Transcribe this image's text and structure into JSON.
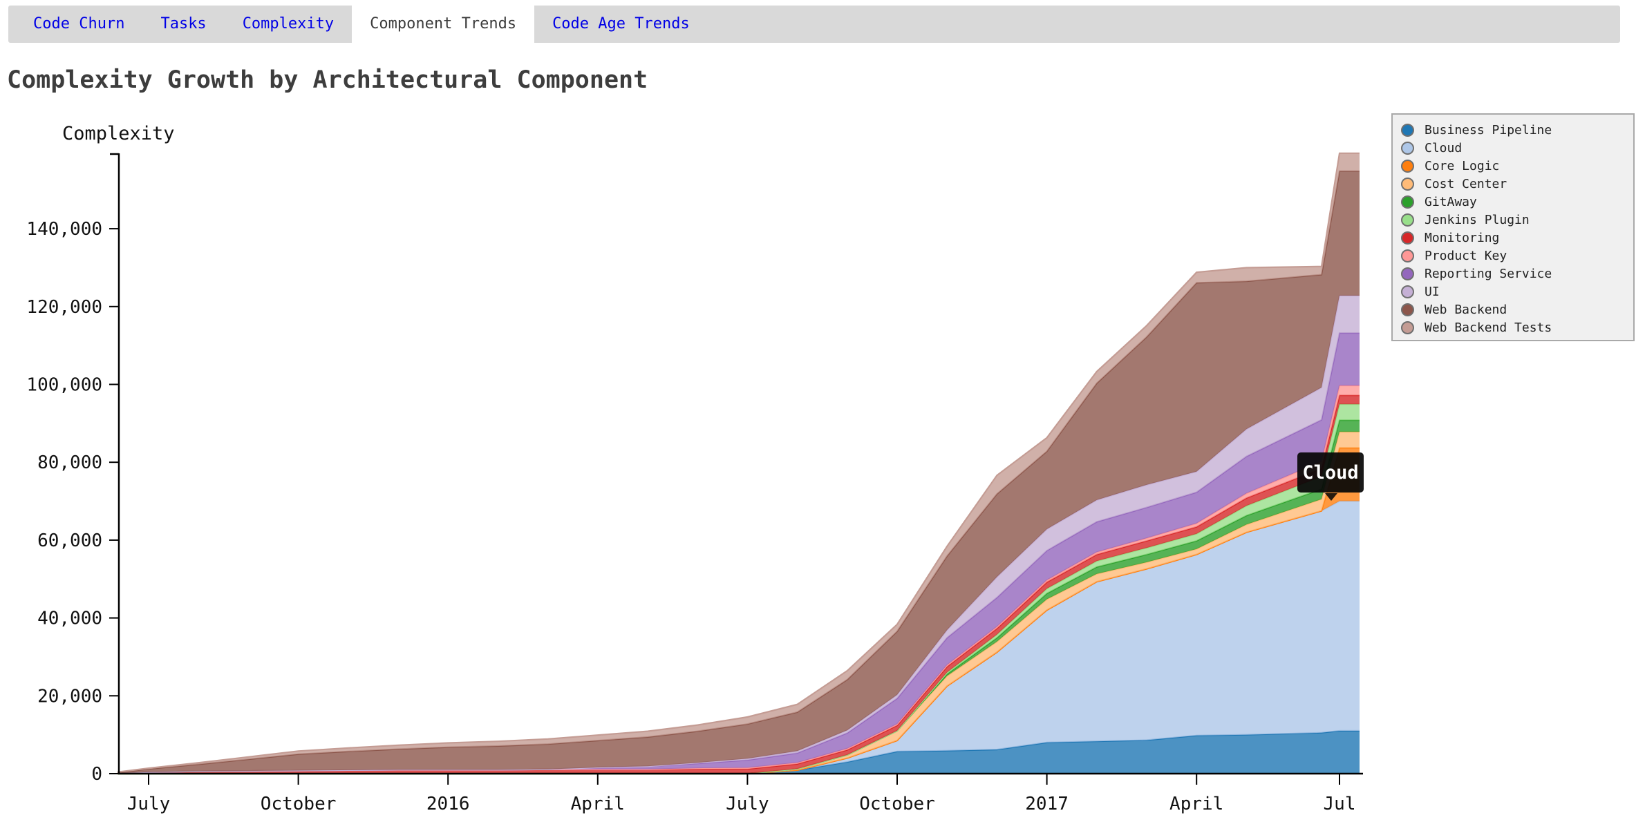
{
  "tabs": {
    "items": [
      {
        "label": "Code Churn",
        "active": false
      },
      {
        "label": "Tasks",
        "active": false
      },
      {
        "label": "Complexity",
        "active": false
      },
      {
        "label": "Component Trends",
        "active": true
      },
      {
        "label": "Code Age Trends",
        "active": false
      }
    ]
  },
  "title": "Complexity Growth by Architectural Component",
  "y_axis": {
    "title": "Complexity",
    "tick_values": [
      0,
      20000,
      40000,
      60000,
      80000,
      100000,
      120000,
      140000
    ],
    "tick_labels": [
      "0",
      "20,000",
      "40,000",
      "60,000",
      "80,000",
      "100,000",
      "120,000",
      "140,000"
    ]
  },
  "x_axis": {
    "tick_labels": [
      "July",
      "October",
      "2016",
      "April",
      "July",
      "October",
      "2017",
      "April",
      "Jul"
    ],
    "tick_month_indices": [
      1,
      4,
      7,
      10,
      13,
      16,
      19,
      22,
      25
    ]
  },
  "tooltip": {
    "label": "Cloud"
  },
  "legend": {
    "items": [
      {
        "label": "Business Pipeline",
        "color": "#1f77b4"
      },
      {
        "label": "Cloud",
        "color": "#aec7e8"
      },
      {
        "label": "Core Logic",
        "color": "#ff7f0e"
      },
      {
        "label": "Cost Center",
        "color": "#ffbb78"
      },
      {
        "label": "GitAway",
        "color": "#2ca02c"
      },
      {
        "label": "Jenkins Plugin",
        "color": "#98df8a"
      },
      {
        "label": "Monitoring",
        "color": "#d62728"
      },
      {
        "label": "Product Key",
        "color": "#ff9896"
      },
      {
        "label": "Reporting Service",
        "color": "#9467bd"
      },
      {
        "label": "UI",
        "color": "#c5b0d5"
      },
      {
        "label": "Web Backend",
        "color": "#8c564b"
      },
      {
        "label": "Web Backend Tests",
        "color": "#c49c94"
      }
    ]
  },
  "chart_data": {
    "type": "area",
    "stacked": true,
    "title": "Complexity Growth by Architectural Component",
    "ylabel": "Complexity",
    "ylim": [
      0,
      158800
    ],
    "grid": false,
    "legend_position": "top-right",
    "x": [
      "2015-06",
      "2015-07",
      "2015-08",
      "2015-09",
      "2015-10",
      "2015-11",
      "2015-12",
      "2016-01",
      "2016-02",
      "2016-03",
      "2016-04",
      "2016-05",
      "2016-06",
      "2016-07",
      "2016-08",
      "2016-09",
      "2016-10",
      "2016-11",
      "2016-12",
      "2017-01",
      "2017-02",
      "2017-03",
      "2017-04",
      "2017-05",
      "2017-06",
      "2017-07"
    ],
    "xtick_labels": [
      "July",
      "October",
      "2016",
      "April",
      "July",
      "October",
      "2017",
      "April",
      "Jul"
    ],
    "series": [
      {
        "name": "Business Pipeline",
        "color": "#1f77b4",
        "values": [
          0,
          0,
          0,
          0,
          0,
          0,
          0,
          0,
          0,
          0,
          0,
          0,
          0,
          0,
          900,
          3000,
          5700,
          5900,
          6200,
          8000,
          8300,
          8600,
          9800,
          10000,
          10500,
          11000
        ]
      },
      {
        "name": "Cloud",
        "color": "#aec7e8",
        "values": [
          0,
          0,
          0,
          0,
          0,
          0,
          0,
          0,
          0,
          0,
          0,
          0,
          0,
          0,
          0,
          1000,
          2800,
          16600,
          25000,
          34000,
          41000,
          44000,
          46500,
          52000,
          57000,
          59000
        ]
      },
      {
        "name": "Core Logic",
        "color": "#ff7f0e",
        "values": [
          0,
          0,
          0,
          0,
          0,
          0,
          0,
          0,
          0,
          0,
          0,
          0,
          0,
          0,
          0,
          0,
          0,
          0,
          0,
          0,
          0,
          0,
          0,
          0,
          0,
          13700
        ]
      },
      {
        "name": "Cost Center",
        "color": "#ffbb78",
        "values": [
          0,
          0,
          0,
          0,
          0,
          0,
          0,
          0,
          0,
          0,
          0,
          0,
          0,
          0,
          300,
          800,
          2500,
          2600,
          2700,
          2800,
          2000,
          1700,
          1400,
          2000,
          3000,
          4100
        ]
      },
      {
        "name": "GitAway",
        "color": "#2ca02c",
        "values": [
          0,
          0,
          0,
          0,
          0,
          0,
          0,
          0,
          0,
          0,
          0,
          0,
          0,
          0,
          0,
          0,
          0,
          500,
          1000,
          1500,
          1800,
          2000,
          2100,
          2300,
          2600,
          3000
        ]
      },
      {
        "name": "Jenkins Plugin",
        "color": "#98df8a",
        "values": [
          0,
          0,
          0,
          0,
          0,
          0,
          0,
          0,
          0,
          0,
          0,
          0,
          0,
          0,
          0,
          0,
          0,
          400,
          800,
          1200,
          1500,
          1700,
          1800,
          2500,
          3200,
          4100
        ]
      },
      {
        "name": "Monitoring",
        "color": "#d62728",
        "values": [
          100,
          400,
          600,
          700,
          800,
          900,
          1000,
          1000,
          1000,
          1100,
          1100,
          1100,
          1200,
          1200,
          1300,
          1300,
          1400,
          1500,
          1600,
          1700,
          1700,
          1800,
          1800,
          2000,
          2100,
          2300
        ]
      },
      {
        "name": "Product Key",
        "color": "#ff9896",
        "values": [
          0,
          0,
          0,
          0,
          0,
          0,
          0,
          0,
          0,
          0,
          0,
          0,
          200,
          300,
          300,
          350,
          350,
          400,
          450,
          500,
          600,
          700,
          900,
          1200,
          1800,
          2500
        ]
      },
      {
        "name": "Reporting Service",
        "color": "#9467bd",
        "values": [
          0,
          0,
          0,
          0,
          0,
          0,
          0,
          0,
          0,
          0,
          500,
          800,
          1200,
          2000,
          2500,
          4000,
          6600,
          7000,
          7500,
          7600,
          7800,
          7900,
          8000,
          9500,
          10700,
          13500
        ]
      },
      {
        "name": "UI",
        "color": "#c5b0d5",
        "values": [
          0,
          0,
          0,
          0,
          0,
          0,
          0,
          0,
          0,
          0,
          0,
          0,
          200,
          350,
          500,
          700,
          900,
          2000,
          5300,
          5500,
          5600,
          5800,
          5300,
          7000,
          8300,
          9600
        ]
      },
      {
        "name": "Web Backend",
        "color": "#8c564b",
        "values": [
          200,
          800,
          1800,
          3000,
          4200,
          4800,
          5300,
          5800,
          6100,
          6500,
          6900,
          7500,
          8100,
          8900,
          10000,
          13000,
          16300,
          19000,
          21300,
          20000,
          30000,
          38000,
          48500,
          38000,
          29000,
          32000
        ]
      },
      {
        "name": "Web Backend Tests",
        "color": "#c49c94",
        "values": [
          100,
          200,
          400,
          600,
          800,
          900,
          1000,
          1100,
          1200,
          1300,
          1400,
          1500,
          1600,
          1800,
          2000,
          2300,
          1800,
          2500,
          4800,
          3500,
          3000,
          2900,
          2700,
          3500,
          2100,
          4600
        ]
      }
    ]
  }
}
